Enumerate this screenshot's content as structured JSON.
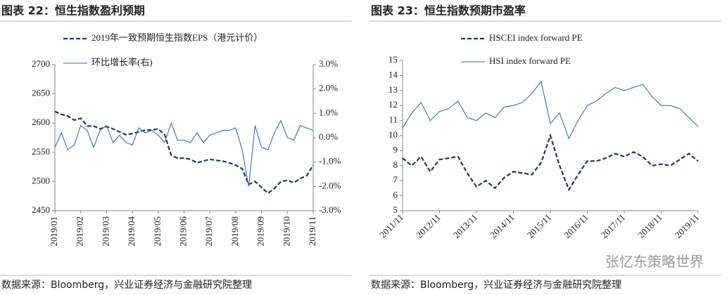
{
  "chart_data": [
    {
      "type": "line",
      "title": "图表 22：恒生指数盈利预期",
      "categories": [
        "2019/01",
        null,
        null,
        null,
        "2019/02",
        null,
        null,
        null,
        "2019/03",
        null,
        null,
        null,
        "2019/04",
        null,
        null,
        null,
        "2019/05",
        null,
        null,
        null,
        "2019/06",
        null,
        null,
        null,
        "2019/07",
        null,
        null,
        null,
        "2019/08",
        null,
        null,
        null,
        "2019/09",
        null,
        null,
        null,
        "2019/10",
        null,
        null,
        null,
        "2019/11"
      ],
      "series": [
        {
          "name": "2019年一致预期恒生指数EPS（港元计价）",
          "color": "#1f3864",
          "style": "dashed",
          "values": [
            2620,
            2615,
            2612,
            2605,
            2608,
            2595,
            2595,
            2590,
            2594,
            2590,
            2585,
            2580,
            2582,
            2585,
            2588,
            2588,
            2590,
            2580,
            2545,
            2540,
            2540,
            2538,
            2532,
            2535,
            2538,
            2536,
            2535,
            2532,
            2528,
            2522,
            2495,
            2500,
            2490,
            2480,
            2488,
            2500,
            2502,
            2498,
            2505,
            2510,
            2528
          ]
        },
        {
          "name": "环比增长率(右)",
          "color": "#2e75b6",
          "style": "solid",
          "axis": "y2",
          "values": [
            -0.4,
            0.2,
            -0.5,
            -0.3,
            0.5,
            0.3,
            -0.4,
            0.3,
            0.5,
            -0.2,
            0.1,
            -0.2,
            -0.3,
            0.4,
            0.2,
            0.3,
            0.1,
            -0.2,
            0.6,
            -0.1,
            -0.1,
            -0.2,
            0.2,
            -0.2,
            0.1,
            0.2,
            0.3,
            0.3,
            0.4,
            -0.5,
            -2.0,
            0.5,
            -0.4,
            -0.5,
            0.2,
            0.7,
            0.0,
            -0.1,
            0.5,
            0.4,
            0.3
          ]
        }
      ],
      "ylim": [
        2450,
        2700
      ],
      "yticks": [
        2450,
        2500,
        2550,
        2600,
        2650,
        2700
      ],
      "y2lim": [
        -3,
        3
      ],
      "y2ticks": [
        {
          "value": -3,
          "label": "-3.0%"
        },
        {
          "value": -2,
          "label": "-2.0%"
        },
        {
          "value": -1,
          "label": "-1.0%"
        },
        {
          "value": 0,
          "label": "0.0%"
        },
        {
          "value": 1,
          "label": "1.0%"
        },
        {
          "value": 2,
          "label": "2.0%"
        },
        {
          "value": 3,
          "label": "3.0%"
        }
      ],
      "source": "数据来源：Bloomberg，兴业证券经济与金融研究院整理"
    },
    {
      "type": "line",
      "title": "图表 23：恒生指数预期市盈率",
      "categories": [
        "2011/11",
        null,
        null,
        null,
        "2012/11",
        null,
        null,
        null,
        "2013/11",
        null,
        null,
        null,
        "2014/11",
        null,
        null,
        null,
        "2015/11",
        null,
        null,
        null,
        "2016/11",
        null,
        null,
        null,
        "2017/11",
        null,
        null,
        null,
        "2018/11",
        null,
        null,
        null,
        "2019/11"
      ],
      "series": [
        {
          "name": "HSCEI index forward PE",
          "color": "#1f3864",
          "style": "dashed",
          "values": [
            8.5,
            8.0,
            8.6,
            7.6,
            8.4,
            8.5,
            8.6,
            7.5,
            6.6,
            7.0,
            6.5,
            7.2,
            7.6,
            7.5,
            7.4,
            8.2,
            10.0,
            8.0,
            6.4,
            7.4,
            8.3,
            8.3,
            8.5,
            8.8,
            8.6,
            8.9,
            8.6,
            8.0,
            8.1,
            8.0,
            8.4,
            8.8,
            8.3
          ]
        },
        {
          "name": "HSI index forward PE",
          "color": "#2e75b6",
          "style": "solid",
          "values": [
            10.5,
            11.5,
            12.2,
            11.0,
            11.6,
            11.8,
            12.3,
            11.2,
            11.0,
            11.5,
            11.2,
            11.9,
            12.0,
            12.2,
            12.8,
            13.6,
            10.8,
            11.5,
            9.8,
            11.0,
            12.0,
            12.3,
            12.8,
            13.2,
            13.0,
            13.2,
            13.4,
            12.6,
            12.0,
            12.0,
            11.8,
            11.2,
            10.6
          ]
        }
      ],
      "ylim": [
        5,
        15
      ],
      "yticks": [
        5,
        6,
        7,
        8,
        9,
        10,
        11,
        12,
        13,
        14,
        15
      ],
      "source": "数据来源：Bloomberg，兴业证券经济与金融研究院整理",
      "watermark": "张忆东策略世界"
    }
  ]
}
